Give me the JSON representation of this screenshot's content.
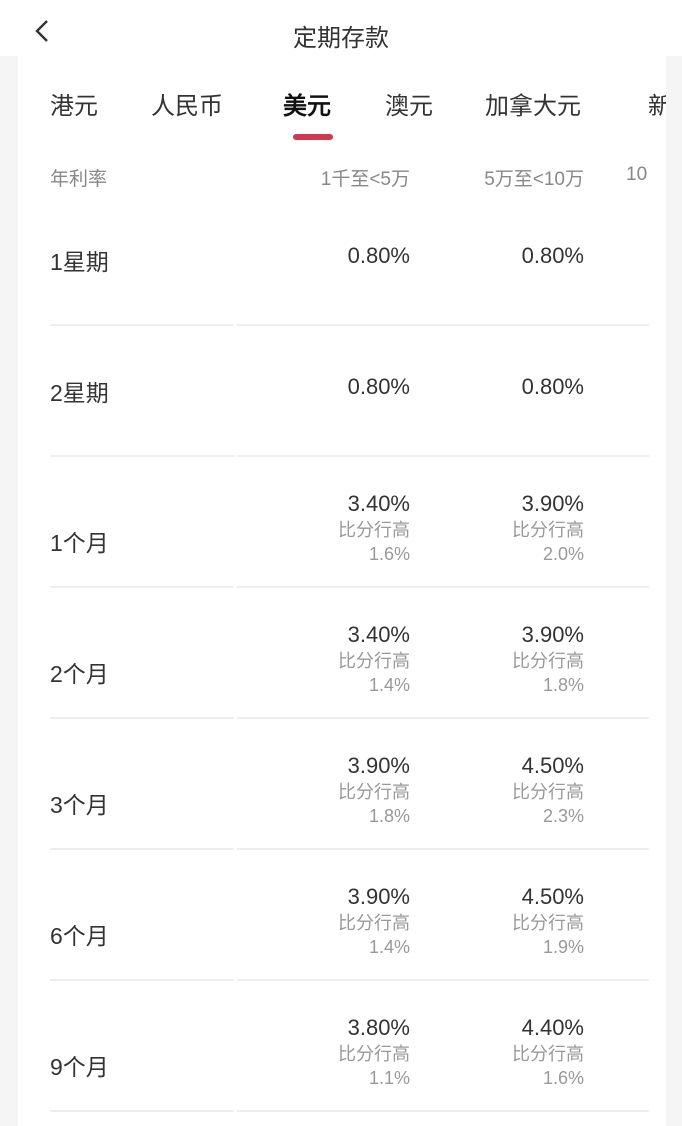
{
  "header": {
    "title": "定期存款",
    "back_icon": "chevron-left-icon"
  },
  "tabs": [
    {
      "label": "港元"
    },
    {
      "label": "人民币"
    },
    {
      "label": "美元",
      "active": true
    },
    {
      "label": "澳元"
    },
    {
      "label": "加拿大元"
    },
    {
      "label": "新"
    }
  ],
  "accent_color": "#d2384f",
  "table": {
    "headers": [
      "年利率",
      "1千至<5万",
      "5万至<10万",
      "10"
    ],
    "rows": [
      {
        "term": "1星期",
        "cells": [
          {
            "rate": "0.80%"
          },
          {
            "rate": "0.80%"
          }
        ]
      },
      {
        "term": "2星期",
        "cells": [
          {
            "rate": "0.80%"
          },
          {
            "rate": "0.80%"
          }
        ]
      },
      {
        "term": "1个月",
        "cells": [
          {
            "rate": "3.40%",
            "note": "比分行高",
            "diff": "1.6%"
          },
          {
            "rate": "3.90%",
            "note": "比分行高",
            "diff": "2.0%"
          }
        ]
      },
      {
        "term": "2个月",
        "cells": [
          {
            "rate": "3.40%",
            "note": "比分行高",
            "diff": "1.4%"
          },
          {
            "rate": "3.90%",
            "note": "比分行高",
            "diff": "1.8%"
          }
        ]
      },
      {
        "term": "3个月",
        "cells": [
          {
            "rate": "3.90%",
            "note": "比分行高",
            "diff": "1.8%"
          },
          {
            "rate": "4.50%",
            "note": "比分行高",
            "diff": "2.3%"
          }
        ]
      },
      {
        "term": "6个月",
        "cells": [
          {
            "rate": "3.90%",
            "note": "比分行高",
            "diff": "1.4%"
          },
          {
            "rate": "4.50%",
            "note": "比分行高",
            "diff": "1.9%"
          }
        ]
      },
      {
        "term": "9个月",
        "cells": [
          {
            "rate": "3.80%",
            "note": "比分行高",
            "diff": "1.1%"
          },
          {
            "rate": "4.40%",
            "note": "比分行高",
            "diff": "1.6%"
          }
        ]
      }
    ]
  }
}
